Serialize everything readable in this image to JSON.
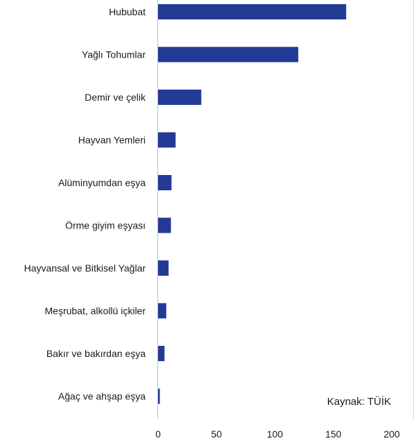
{
  "chart_data": {
    "type": "bar",
    "orientation": "horizontal",
    "categories": [
      "Hububat",
      "Yağlı Tohumlar",
      "Demir ve çelik",
      "Hayvan Yemleri",
      "Alüminyumdan eşya",
      "Örme giyim eşyası",
      "Hayvansal ve Bitkisel Yağlar",
      "Meşrubat, alkollü içkiler",
      "Bakır ve bakırdan eşya",
      "Ağaç ve ahşap eşya"
    ],
    "values": [
      161,
      120,
      37,
      15,
      11.5,
      11,
      9,
      7,
      5.5,
      1.5
    ],
    "xlim": [
      0,
      200
    ],
    "xticks": [
      "0",
      "50",
      "100",
      "150",
      "200"
    ],
    "grid": false,
    "legend": false,
    "bar_color": "#233a95",
    "source": "Kaynak: TÜİK"
  }
}
